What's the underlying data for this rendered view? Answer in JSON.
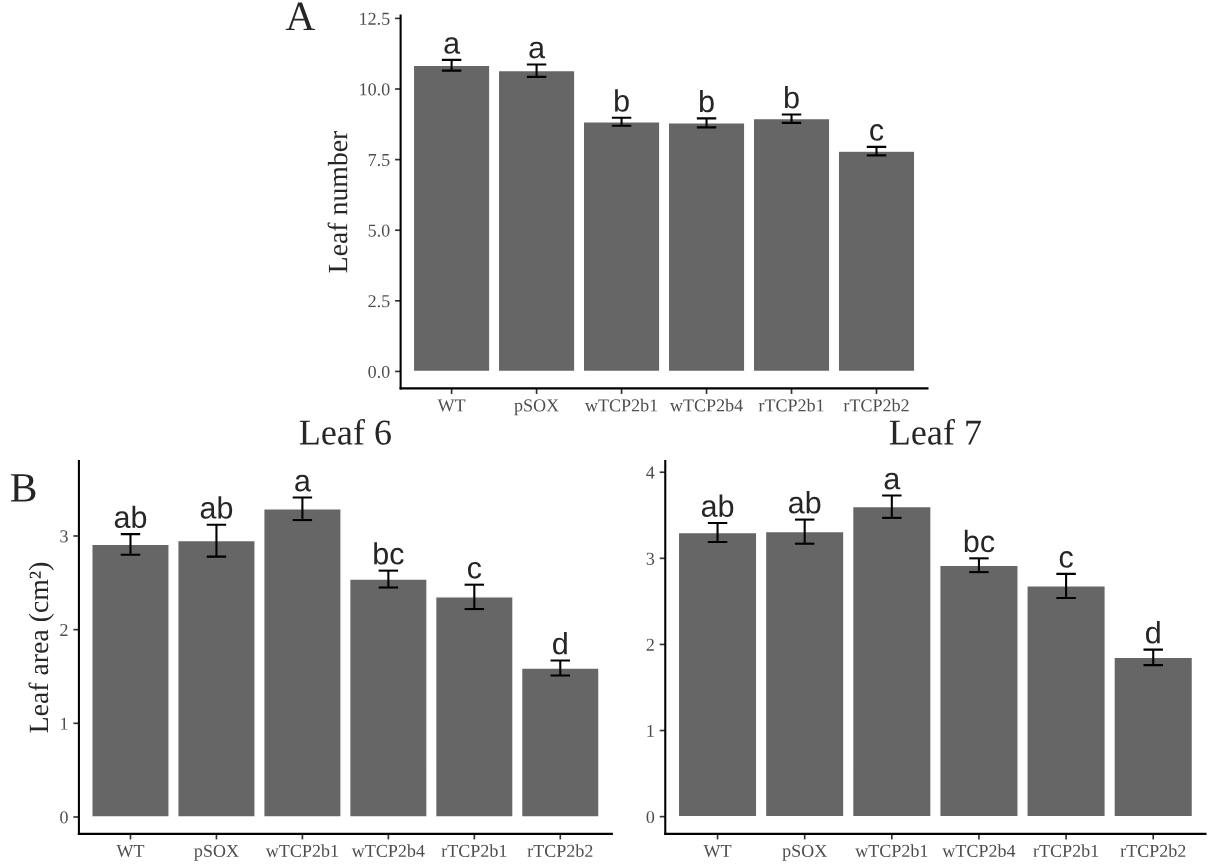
{
  "chart_data": [
    {
      "type": "bar",
      "ylabel": "Leaf number",
      "categories": [
        "WT",
        "pSOX",
        "wTCP2b1",
        "wTCP2b4",
        "rTCP2b1",
        "rTCP2b2"
      ],
      "values": [
        10.84,
        10.65,
        8.84,
        8.8,
        8.95,
        7.8
      ],
      "errors": [
        0.19,
        0.22,
        0.14,
        0.16,
        0.15,
        0.15
      ],
      "color": "#666666",
      "ylim": [
        -0.6,
        12.6
      ],
      "yticks": [
        {
          "value": 0,
          "label": "0.0"
        },
        2.5,
        {
          "value": 5,
          "label": "5.0"
        },
        7.5,
        {
          "value": 10,
          "label": "10.0"
        },
        12.5
      ],
      "grid": false,
      "annotations": [
        "A",
        {
          "text": "a",
          "x": "WT",
          "y": 11.03
        },
        {
          "text": "a",
          "x": "pSOX",
          "y": 10.87
        },
        {
          "text": "b",
          "x": "wTCP2b1",
          "y": 8.98
        },
        {
          "text": "b",
          "x": "wTCP2b4",
          "y": 8.96
        },
        {
          "text": "b",
          "x": "rTCP2b1",
          "y": 9.1
        },
        {
          "text": "c",
          "x": "rTCP2b2",
          "y": 7.95
        }
      ]
    },
    {
      "type": "bar",
      "title": "Leaf 6",
      "ylabel": "Leaf area (cm²)",
      "categories": [
        "WT",
        "pSOX",
        "wTCP2b1",
        "wTCP2b4",
        "rTCP2b1",
        "rTCP2b2"
      ],
      "values": [
        2.91,
        2.95,
        3.29,
        2.54,
        2.35,
        1.59
      ],
      "errors": [
        0.11,
        0.17,
        0.12,
        0.09,
        0.13,
        0.08
      ],
      "color": "#666666",
      "ylim": [
        -0.18,
        3.8
      ],
      "yticks": [
        0,
        1,
        2,
        3
      ],
      "grid": false,
      "annotations": [
        "B",
        {
          "text": "ab",
          "x": "WT",
          "y": 3.02
        },
        {
          "text": "ab",
          "x": "pSOX",
          "y": 3.12
        },
        {
          "text": "a",
          "x": "wTCP2b1",
          "y": 3.41
        },
        {
          "text": "bc",
          "x": "wTCP2b4",
          "y": 2.63
        },
        {
          "text": "c",
          "x": "rTCP2b1",
          "y": 2.48
        },
        {
          "text": "d",
          "x": "rTCP2b2",
          "y": 1.67
        }
      ]
    },
    {
      "type": "bar",
      "title": "Leaf 7",
      "categories": [
        "WT",
        "pSOX",
        "wTCP2b1",
        "wTCP2b4",
        "rTCP2b1",
        "rTCP2b2"
      ],
      "values": [
        3.3,
        3.31,
        3.6,
        2.92,
        2.68,
        1.85
      ],
      "errors": [
        0.11,
        0.14,
        0.13,
        0.08,
        0.14,
        0.09
      ],
      "color": "#666666",
      "ylim": [
        -0.2,
        4.13
      ],
      "yticks": [
        0,
        1,
        2,
        3,
        4
      ],
      "grid": false,
      "annotations": [
        {
          "text": "ab",
          "x": "WT",
          "y": 3.41
        },
        {
          "text": "ab",
          "x": "pSOX",
          "y": 3.45
        },
        {
          "text": "a",
          "x": "wTCP2b1",
          "y": 3.73
        },
        {
          "text": "bc",
          "x": "wTCP2b4",
          "y": 3.0
        },
        {
          "text": "c",
          "x": "rTCP2b1",
          "y": 2.82
        },
        {
          "text": "d",
          "x": "rTCP2b2",
          "y": 1.94
        }
      ]
    }
  ]
}
